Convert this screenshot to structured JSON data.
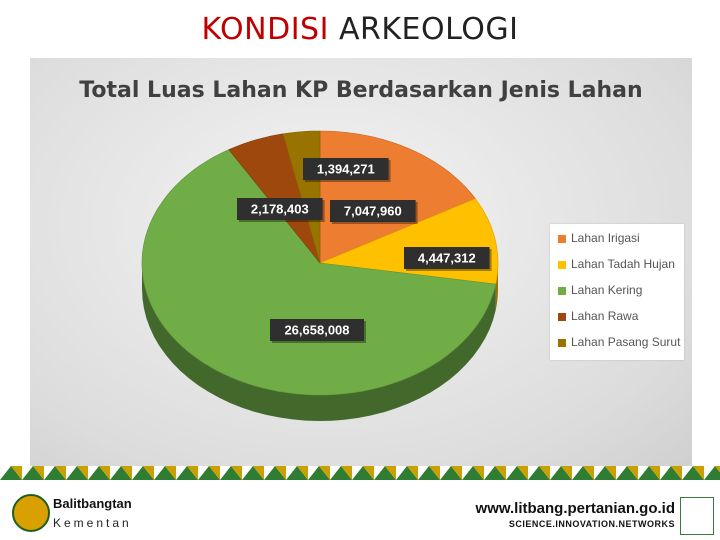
{
  "slide": {
    "title_highlight": "KONDISI",
    "title_rest": "ARKEOLOGI"
  },
  "chart_data": {
    "type": "pie",
    "title": "Total Luas Lahan KP Berdasarkan Jenis Lahan",
    "categories": [
      "Lahan Irigasi",
      "Lahan Tadah Hujan",
      "Lahan Kering",
      "Lahan Rawa",
      "Lahan Pasang Surut"
    ],
    "values": [
      7047960,
      4447312,
      26658008,
      2178403,
      1394271
    ],
    "data_labels": [
      "7,047,960",
      "4,447,312",
      "26,658,008",
      "2,178,403",
      "1,394,271"
    ],
    "colors": [
      "#ed7d31",
      "#ffc000",
      "#70ad47",
      "#9e480e",
      "#997300"
    ],
    "legend_position": "right",
    "style": "3d-pie"
  },
  "footer": {
    "brand_line1": "Balitbangtan",
    "brand_line2": "Kementan",
    "url": "www.litbang.pertanian.go.id",
    "tagline": "SCIENCE.INNOVATION.NETWORKS"
  }
}
